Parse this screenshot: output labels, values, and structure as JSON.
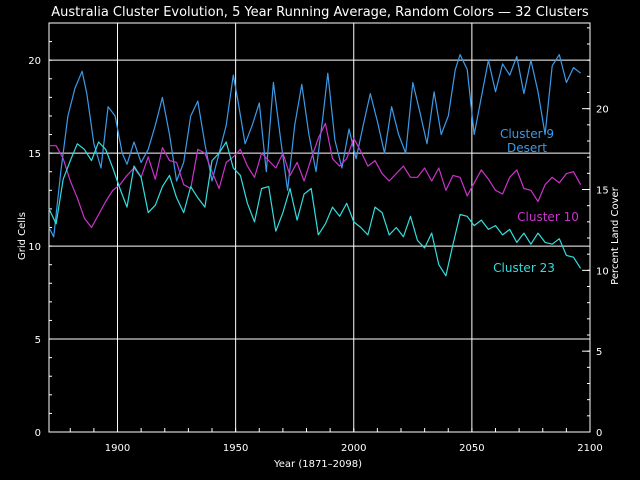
{
  "chart_data": {
    "type": "line",
    "title": "Australia Cluster Evolution, 5 Year Running Average, Random Colors — 32 Clusters",
    "xlabel": "Year (1871–2098)",
    "ylabel": "Grid Cells",
    "y2label": "Percent Land Cover",
    "xlim": [
      1871,
      2100
    ],
    "ylim": [
      0,
      22
    ],
    "y2lim": [
      0,
      25.3
    ],
    "x_ticks": [
      1900,
      1950,
      2000,
      2050,
      2100
    ],
    "y_ticks": [
      0,
      5,
      10,
      15,
      20
    ],
    "y2_ticks": [
      0,
      5,
      10,
      15,
      20
    ],
    "grid": true,
    "series": [
      {
        "name": "Cluster 9",
        "label_lines": [
          "Cluster 9",
          "Desert"
        ],
        "color": "#3d9ae8",
        "x": [
          1871,
          1873,
          1876,
          1879,
          1882,
          1885,
          1887,
          1890,
          1893,
          1896,
          1899,
          1902,
          1904,
          1907,
          1910,
          1913,
          1916,
          1919,
          1922,
          1925,
          1928,
          1931,
          1934,
          1937,
          1940,
          1943,
          1946,
          1949,
          1951,
          1954,
          1957,
          1960,
          1963,
          1966,
          1969,
          1972,
          1975,
          1978,
          1981,
          1984,
          1987,
          1989,
          1992,
          1995,
          1998,
          2001,
          2004,
          2007,
          2010,
          2013,
          2016,
          2019,
          2022,
          2025,
          2028,
          2031,
          2034,
          2037,
          2040,
          2043,
          2045,
          2048,
          2051,
          2054,
          2057,
          2060,
          2063,
          2066,
          2069,
          2072,
          2075,
          2078,
          2081,
          2084,
          2087,
          2090,
          2093,
          2096
        ],
        "values": [
          11,
          10.5,
          14,
          17,
          18.5,
          19.4,
          18.2,
          15.5,
          14.2,
          17.5,
          17,
          15,
          14.4,
          15.6,
          14.5,
          15.2,
          16.5,
          18,
          16,
          13.5,
          14.5,
          17,
          17.8,
          15.5,
          13.5,
          15,
          16.5,
          19.2,
          17.8,
          15.5,
          16.5,
          17.7,
          14,
          18.8,
          15.8,
          13,
          16.5,
          18.7,
          16,
          14,
          17,
          19.3,
          15.7,
          14.2,
          16.3,
          14.7,
          16.5,
          18.2,
          16.7,
          15,
          17.5,
          16,
          15,
          18.8,
          17.2,
          15.5,
          18.3,
          16,
          17,
          19.5,
          20.3,
          19.5,
          16,
          18,
          20,
          18.3,
          19.8,
          19.2,
          20.2,
          18.2,
          20,
          18.3,
          16,
          19.7,
          20.3,
          18.8,
          19.6,
          19.3
        ]
      },
      {
        "name": "Cluster 10",
        "label_lines": [
          "Cluster 10"
        ],
        "color": "#cc33cc",
        "x": [
          1871,
          1874,
          1877,
          1880,
          1883,
          1886,
          1889,
          1892,
          1895,
          1898,
          1901,
          1904,
          1907,
          1910,
          1913,
          1916,
          1919,
          1922,
          1925,
          1928,
          1931,
          1934,
          1937,
          1940,
          1943,
          1946,
          1949,
          1952,
          1955,
          1958,
          1961,
          1964,
          1967,
          1970,
          1973,
          1976,
          1979,
          1982,
          1985,
          1988,
          1991,
          1994,
          1997,
          2000,
          2003,
          2006,
          2009,
          2012,
          2015,
          2018,
          2021,
          2024,
          2027,
          2030,
          2033,
          2036,
          2039,
          2042,
          2045,
          2048,
          2051,
          2054,
          2057,
          2060,
          2063,
          2066,
          2069,
          2072,
          2075,
          2078,
          2081,
          2084,
          2087,
          2090,
          2093,
          2096
        ],
        "values": [
          15.4,
          15.4,
          14.7,
          13.5,
          12.6,
          11.5,
          11,
          11.7,
          12.4,
          13,
          13.3,
          13.8,
          14.2,
          13.7,
          14.8,
          13.6,
          15.3,
          14.6,
          14.5,
          13.3,
          13.1,
          15.2,
          15,
          14,
          13.1,
          14.5,
          14.8,
          15.2,
          14.3,
          13.7,
          15,
          14.6,
          14.2,
          15,
          13.8,
          14.5,
          13.5,
          14.7,
          15.8,
          16.6,
          14.7,
          14.3,
          14.7,
          15.8,
          15.1,
          14.3,
          14.6,
          13.9,
          13.5,
          13.9,
          14.3,
          13.7,
          13.7,
          14.2,
          13.5,
          14.2,
          13,
          13.8,
          13.7,
          12.7,
          13.4,
          14.1,
          13.6,
          13,
          12.8,
          13.7,
          14.1,
          13.1,
          13,
          12.4,
          13.3,
          13.7,
          13.4,
          13.9,
          14,
          13.3
        ]
      },
      {
        "name": "Cluster 23",
        "label_lines": [
          "Cluster 23"
        ],
        "color": "#33dddd",
        "x": [
          1871,
          1874,
          1877,
          1880,
          1883,
          1886,
          1889,
          1892,
          1895,
          1898,
          1901,
          1904,
          1907,
          1910,
          1913,
          1916,
          1919,
          1922,
          1925,
          1928,
          1931,
          1934,
          1937,
          1940,
          1943,
          1946,
          1949,
          1952,
          1955,
          1958,
          1961,
          1964,
          1967,
          1970,
          1973,
          1976,
          1979,
          1982,
          1985,
          1988,
          1991,
          1994,
          1997,
          2000,
          2003,
          2006,
          2009,
          2012,
          2015,
          2018,
          2021,
          2024,
          2027,
          2030,
          2033,
          2036,
          2039,
          2042,
          2045,
          2048,
          2051,
          2054,
          2057,
          2060,
          2063,
          2066,
          2069,
          2072,
          2075,
          2078,
          2081,
          2084,
          2087,
          2090,
          2093,
          2096
        ],
        "values": [
          12,
          11.2,
          13.6,
          14.6,
          15.5,
          15.2,
          14.6,
          15.6,
          15.2,
          14.2,
          13.1,
          12.1,
          14.3,
          13.7,
          11.8,
          12.2,
          13.2,
          13.8,
          12.6,
          11.8,
          13.2,
          12.6,
          12.1,
          14.6,
          15,
          15.6,
          14.2,
          13.8,
          12.3,
          11.3,
          13.1,
          13.2,
          10.8,
          11.8,
          13.1,
          11.4,
          12.8,
          13.1,
          10.6,
          11.2,
          12.1,
          11.6,
          12.3,
          11.3,
          11,
          10.6,
          12.1,
          11.8,
          10.6,
          11,
          10.5,
          11.6,
          10.3,
          9.9,
          10.7,
          9,
          8.4,
          10.1,
          11.7,
          11.6,
          11.1,
          11.4,
          10.9,
          11.1,
          10.6,
          10.9,
          10.2,
          10.7,
          10.1,
          10.7,
          10.2,
          10.1,
          10.4,
          9.5,
          9.4,
          8.8
        ]
      }
    ]
  }
}
